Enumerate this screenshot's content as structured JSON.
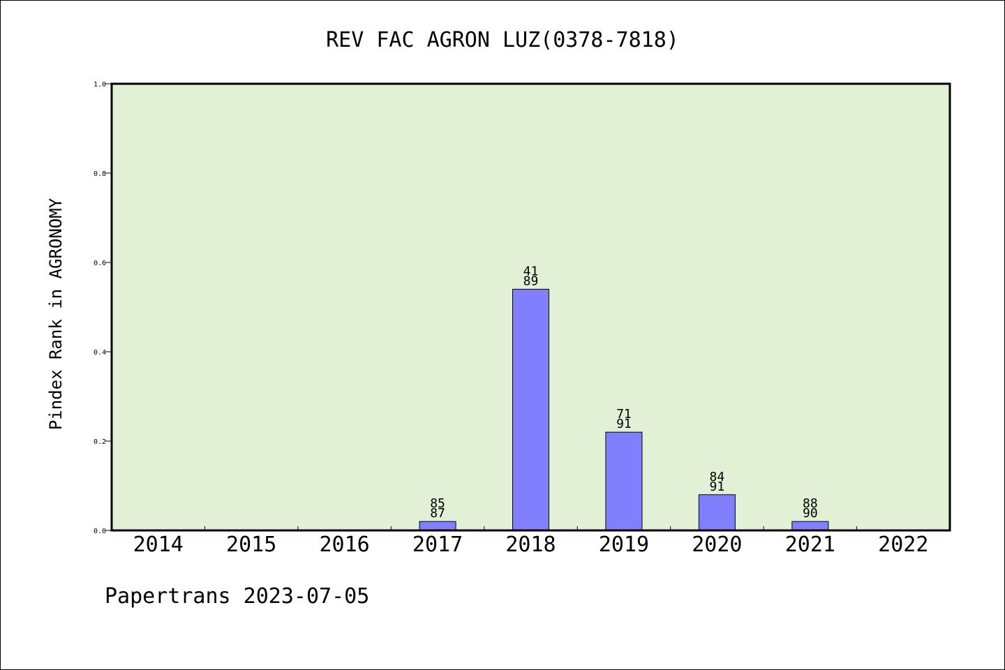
{
  "chart_data": {
    "type": "bar",
    "title": "REV FAC AGRON LUZ(0378-7818)",
    "xlabel": "",
    "ylabel": "Pindex Rank in AGRONOMY",
    "ylim": [
      0,
      1.0
    ],
    "yticks": [
      "0.0",
      "0.2",
      "0.4",
      "0.6",
      "0.8",
      "1.0"
    ],
    "categories": [
      "2014",
      "2015",
      "2016",
      "2017",
      "2018",
      "2019",
      "2020",
      "2021",
      "2022"
    ],
    "values": [
      0,
      0,
      0,
      0.02,
      0.54,
      0.22,
      0.08,
      0.02,
      0
    ],
    "rank_labels": [
      null,
      null,
      null,
      {
        "rank": "85",
        "total": "87"
      },
      {
        "rank": "41",
        "total": "89"
      },
      {
        "rank": "71",
        "total": "91"
      },
      {
        "rank": "84",
        "total": "91"
      },
      {
        "rank": "88",
        "total": "90"
      },
      null
    ],
    "grid": false,
    "colors": {
      "plot_background": "#e2f0d6",
      "bar_fill": "#8080ff",
      "bar_stroke": "#000000"
    }
  },
  "footer": {
    "text": "Papertrans 2023-07-05"
  }
}
